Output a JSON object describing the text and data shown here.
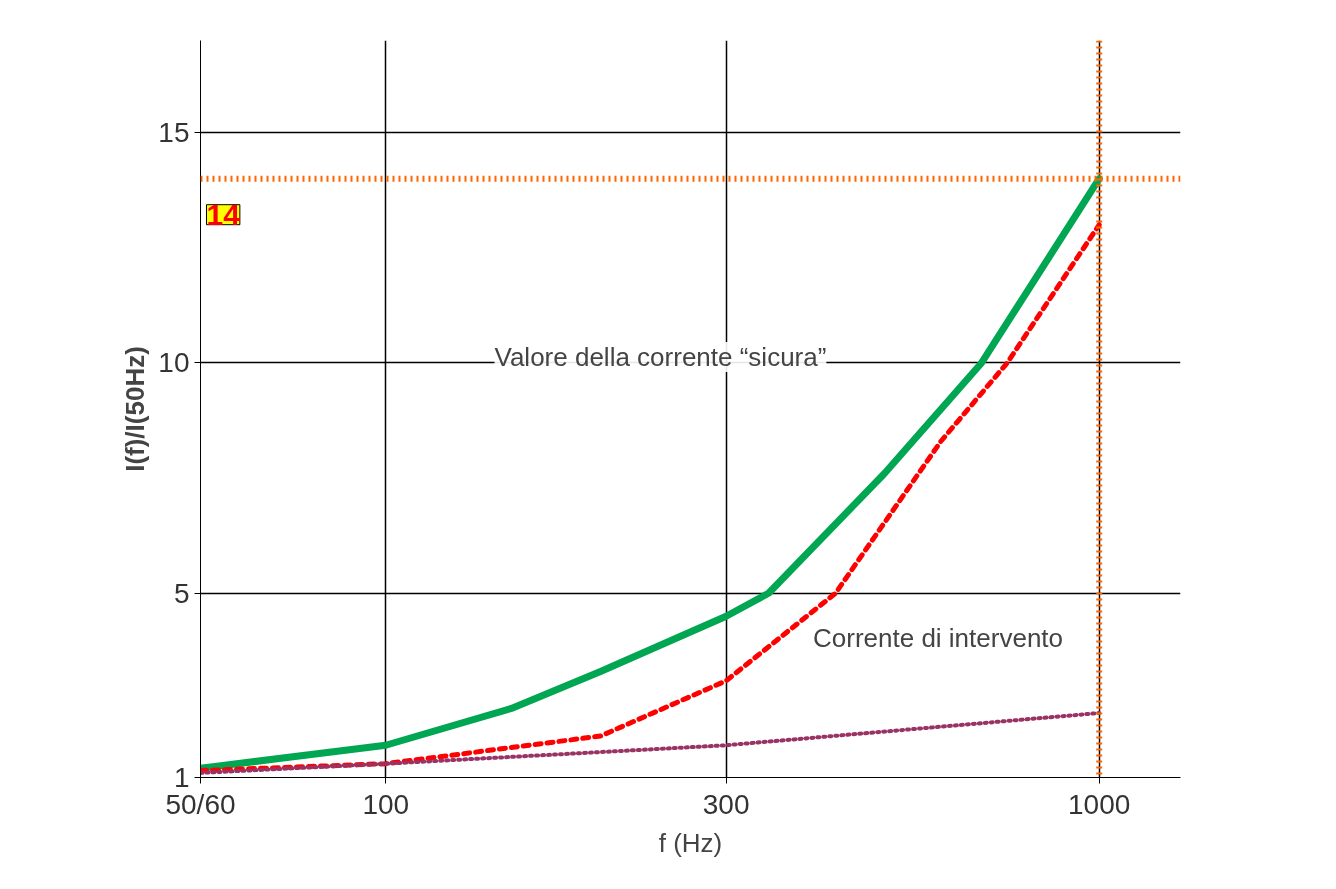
{
  "chart_data": {
    "type": "line",
    "xlabel": "f (Hz)",
    "ylabel": "I(f)/I(50Hz)",
    "log": "x",
    "xlim": [
      55,
      1300
    ],
    "xticks": [
      {
        "value": 55,
        "label": "50/60"
      },
      100,
      300,
      1000
    ],
    "ylim": [
      1,
      17
    ],
    "yticks": [
      1,
      5,
      10,
      15
    ],
    "grid": true,
    "series": [
      {
        "color": "#00a651",
        "line_style": "solid",
        "x": [
          55,
          100,
          150,
          200,
          300,
          344,
          500,
          684,
          1000
        ],
        "values": [
          1.2,
          1.7,
          2.5,
          3.3,
          4.5,
          5,
          7.6,
          10,
          14
        ]
      },
      {
        "color": "#ff0000",
        "line_style": "dashed",
        "x": [
          55,
          100,
          200,
          300,
          427,
          600,
          743,
          1000
        ],
        "values": [
          1.15,
          1.3,
          1.9,
          3.1,
          5,
          8.3,
          10,
          13
        ]
      },
      {
        "color": "#993366",
        "line_style": "dotted",
        "x": [
          55,
          100,
          300,
          1000
        ],
        "values": [
          1.1,
          1.3,
          1.7,
          2.4
        ]
      }
    ],
    "ref_lines": [
      {
        "axis": "y",
        "value": 14,
        "label": "14",
        "color": "#ff6600",
        "line_style": "dotted"
      },
      {
        "axis": "x",
        "value": 1000,
        "color": "#ff6600",
        "line_style": "dotted"
      }
    ],
    "annotations": [
      "Valore della corrente “sicura”",
      "Corrente di intervento"
    ]
  }
}
